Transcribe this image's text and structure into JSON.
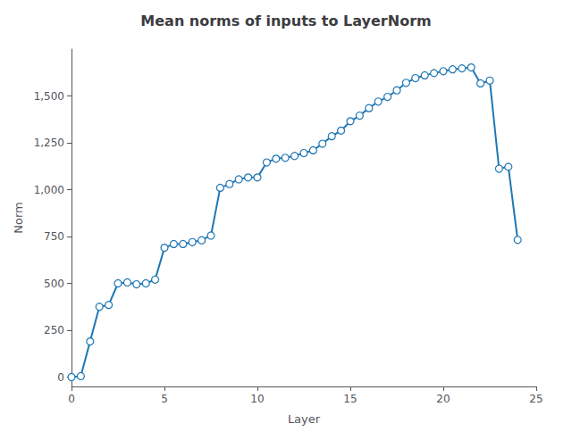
{
  "chart_data": {
    "type": "line",
    "title": "Mean norms of inputs to LayerNorm",
    "xlabel": "Layer",
    "ylabel": "Norm",
    "x": [
      0,
      0.5,
      1,
      1.5,
      2,
      2.5,
      3,
      3.5,
      4,
      4.5,
      5,
      5.5,
      6,
      6.5,
      7,
      7.5,
      8,
      8.5,
      9,
      9.5,
      10,
      10.5,
      11,
      11.5,
      12,
      12.5,
      13,
      13.5,
      14,
      14.5,
      15,
      15.5,
      16,
      16.5,
      17,
      17.5,
      18,
      18.5,
      19,
      19.5,
      20,
      20.5,
      21,
      21.5,
      22,
      22.5,
      23,
      23.5,
      24
    ],
    "values": [
      0,
      5,
      190,
      375,
      385,
      500,
      505,
      495,
      500,
      520,
      690,
      710,
      710,
      720,
      730,
      755,
      1010,
      1030,
      1055,
      1065,
      1065,
      1145,
      1165,
      1170,
      1180,
      1195,
      1210,
      1245,
      1285,
      1315,
      1365,
      1395,
      1435,
      1470,
      1495,
      1530,
      1570,
      1595,
      1610,
      1622,
      1632,
      1642,
      1647,
      1652,
      1567,
      1582,
      1112,
      1122,
      732
    ],
    "color": "#1f77b4",
    "marker": "circle",
    "xlim": [
      0,
      25
    ],
    "xticks": [
      0,
      5,
      10,
      15,
      20,
      25
    ],
    "ylim": [
      -50,
      1750
    ],
    "yticks": [
      0,
      250,
      500,
      750,
      1000,
      1250,
      1500
    ],
    "grid": false
  }
}
